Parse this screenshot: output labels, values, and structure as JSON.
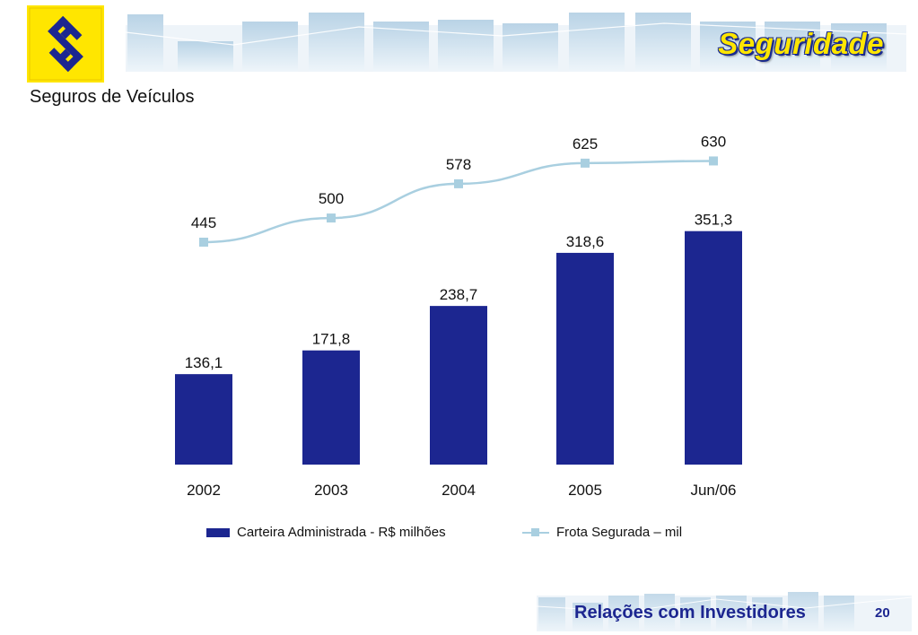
{
  "header": {
    "title": "Seguridade"
  },
  "subtitle": "Seguros de Veículos",
  "colors": {
    "bar": "#1c2690",
    "line": "#a9cfe0",
    "brand_yellow": "#ffe600",
    "brand_blue": "#1c2690"
  },
  "chart_data": {
    "type": "bar",
    "categories": [
      "2002",
      "2003",
      "2004",
      "2005",
      "Jun/06"
    ],
    "series": [
      {
        "name": "Carteira Administrada - R$ milhões",
        "type": "bar",
        "values": [
          136.1,
          171.8,
          238.7,
          318.6,
          351.3
        ],
        "labels": [
          "136,1",
          "171,8",
          "238,7",
          "318,6",
          "351,3"
        ]
      },
      {
        "name": "Frota Segurada – mil",
        "type": "line",
        "values": [
          445,
          500,
          578,
          625,
          630
        ],
        "labels": [
          "445",
          "500",
          "578",
          "625",
          "630"
        ]
      }
    ],
    "legend_position": "bottom",
    "grid": false
  },
  "legend": {
    "bar_label": "Carteira Administrada - R$ milhões",
    "line_label": "Frota Segurada – mil"
  },
  "footer": {
    "text": "Relações com Investidores",
    "page_number": "20"
  }
}
